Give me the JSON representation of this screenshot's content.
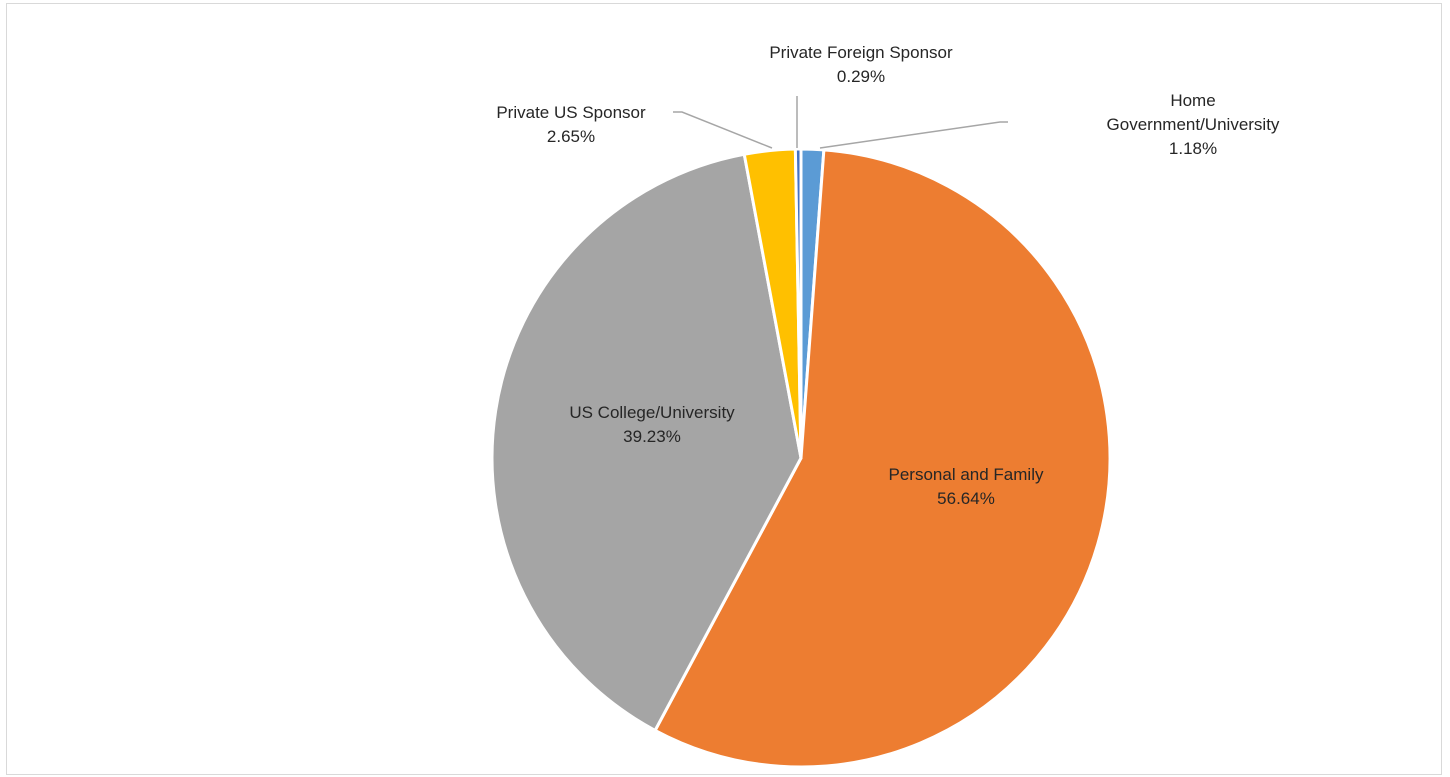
{
  "chart_data": {
    "type": "pie",
    "slices": [
      {
        "label": "Home Government/University",
        "label_lines": [
          "Home",
          "Government/University"
        ],
        "percent_text": "1.18%",
        "value": 1.18,
        "color": "#5b9bd5"
      },
      {
        "label": "Personal and Family",
        "label_lines": [
          "Personal and Family"
        ],
        "percent_text": "56.64%",
        "value": 56.64,
        "color": "#ed7d31"
      },
      {
        "label": "US College/University",
        "label_lines": [
          "US College/University"
        ],
        "percent_text": "39.23%",
        "value": 39.23,
        "color": "#a5a5a5"
      },
      {
        "label": "Private US Sponsor",
        "label_lines": [
          "Private US Sponsor"
        ],
        "percent_text": "2.65%",
        "value": 2.65,
        "color": "#ffc000"
      },
      {
        "label": "Private Foreign Sponsor",
        "label_lines": [
          "Private Foreign Sponsor"
        ],
        "percent_text": "0.29%",
        "value": 0.29,
        "color": "#4472c4"
      }
    ],
    "start_angle_deg": 0,
    "direction": "clockwise",
    "slice_border_color": "#ffffff",
    "leader_line_color": "#a6a6a6",
    "legend": "none"
  }
}
